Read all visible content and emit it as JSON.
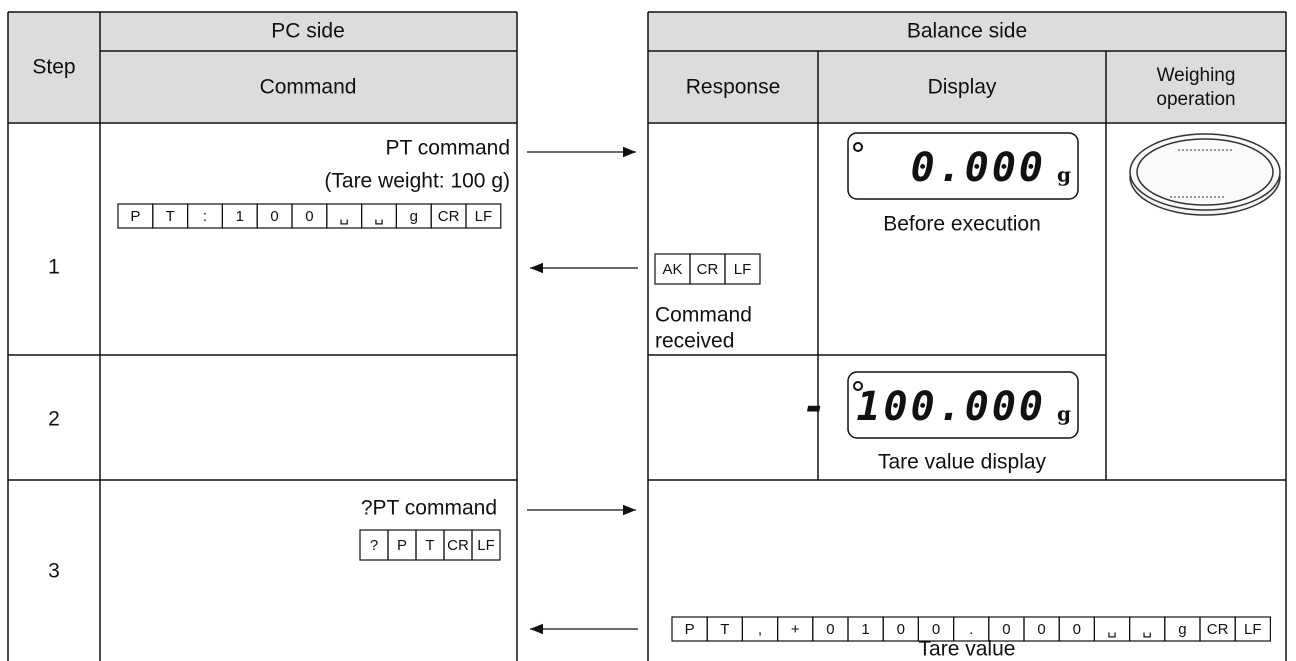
{
  "left_table": {
    "group_header": "PC side",
    "step_header": "Step",
    "command_header": "Command"
  },
  "right_table": {
    "group_header": "Balance side",
    "response_header": "Response",
    "display_header": "Display",
    "weighing_header": [
      "Weighing",
      "operation"
    ]
  },
  "rows": [
    {
      "step": "1",
      "command": {
        "title": "PT command",
        "note": "(Tare weight: 100 g)",
        "codes": [
          "P",
          "T",
          ":",
          "1",
          "0",
          "0",
          "␣",
          "␣",
          "g",
          "CR",
          "LF"
        ]
      },
      "response": {
        "codes": [
          "AK",
          "CR",
          "LF"
        ],
        "label": [
          "Command",
          "received"
        ]
      },
      "display": {
        "reading": "0.000",
        "unit": "g",
        "caption": "Before execution"
      }
    },
    {
      "step": "2",
      "display": {
        "reading": "- 100.000",
        "unit": "g",
        "caption": "Tare value display"
      }
    },
    {
      "step": "3",
      "command": {
        "title": "?PT command",
        "codes": [
          "?",
          "P",
          "T",
          "CR",
          "LF"
        ]
      },
      "response": {
        "codes": [
          "P",
          "T",
          ",",
          "+",
          "0",
          "1",
          "0",
          "0",
          ".",
          "0",
          "0",
          "0",
          "␣",
          "␣",
          "g",
          "CR",
          "LF"
        ],
        "caption": "Tare value"
      }
    }
  ]
}
